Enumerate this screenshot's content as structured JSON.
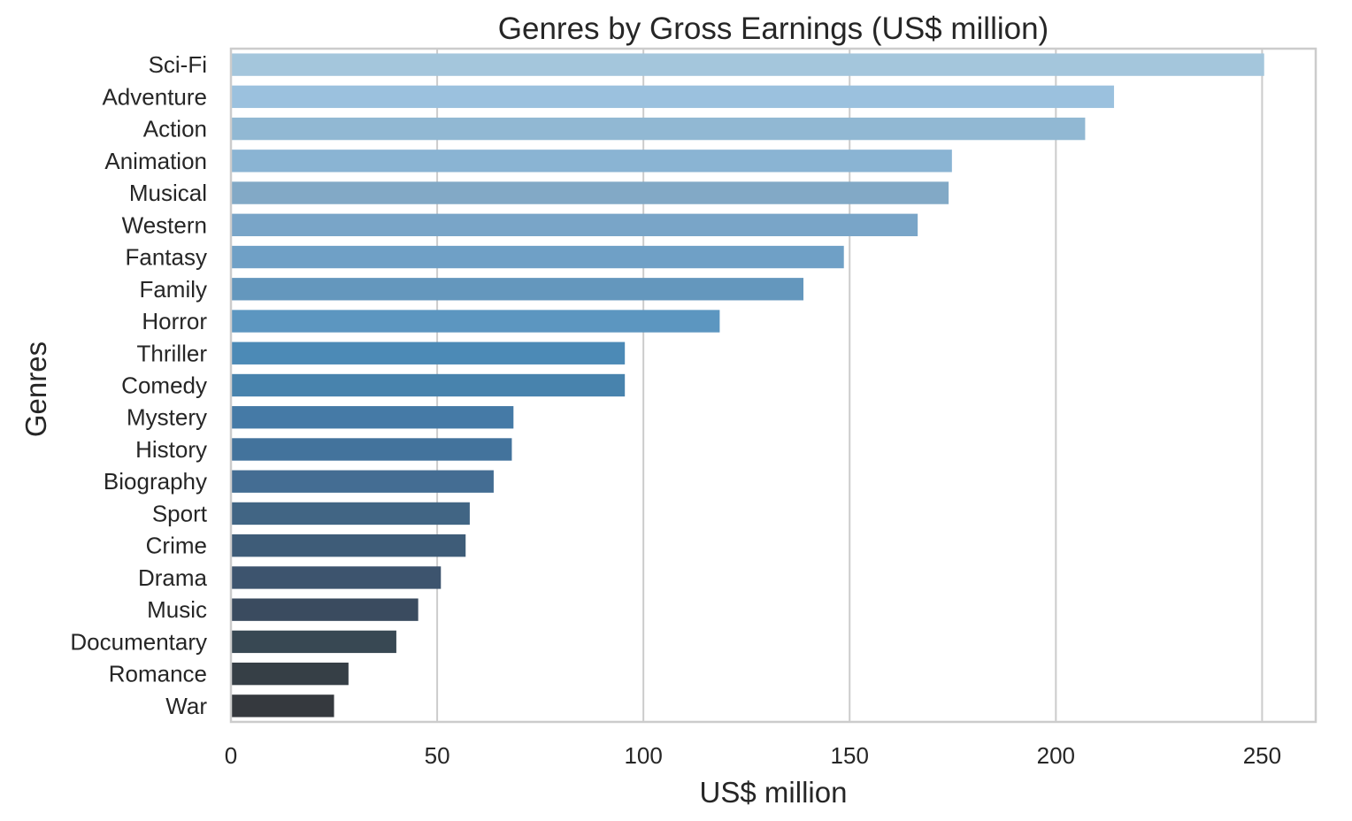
{
  "chart_data": {
    "type": "bar",
    "orientation": "horizontal",
    "title": "Genres by Gross Earnings (US$ million)",
    "xlabel": "US$ million",
    "ylabel": "Genres",
    "xlim": [
      0,
      263
    ],
    "xticks": [
      0,
      50,
      100,
      150,
      200,
      250
    ],
    "grid": true,
    "categories": [
      "Sci-Fi",
      "Adventure",
      "Action",
      "Animation",
      "Musical",
      "Western",
      "Fantasy",
      "Family",
      "Horror",
      "Thriller",
      "Comedy",
      "Mystery",
      "History",
      "Biography",
      "Sport",
      "Crime",
      "Drama",
      "Music",
      "Documentary",
      "Romance",
      "War"
    ],
    "values": [
      250.5,
      214.1,
      207.1,
      174.8,
      174.0,
      166.5,
      148.6,
      138.8,
      118.5,
      95.5,
      95.5,
      68.5,
      68.1,
      63.7,
      57.9,
      56.9,
      50.9,
      45.4,
      40.1,
      28.5,
      25.0
    ],
    "colors": [
      "#a4c6dc",
      "#9bc1de",
      "#91b8d3",
      "#8ab4d3",
      "#82a9c6",
      "#79a5c8",
      "#6fa0c6",
      "#6497bd",
      "#5c96c0",
      "#4c8ab6",
      "#4883ad",
      "#457aa6",
      "#43739c",
      "#446d93",
      "#416584",
      "#3e5c78",
      "#3d546e",
      "#3a4b5f",
      "#384853",
      "#363f46",
      "#35393e"
    ]
  }
}
